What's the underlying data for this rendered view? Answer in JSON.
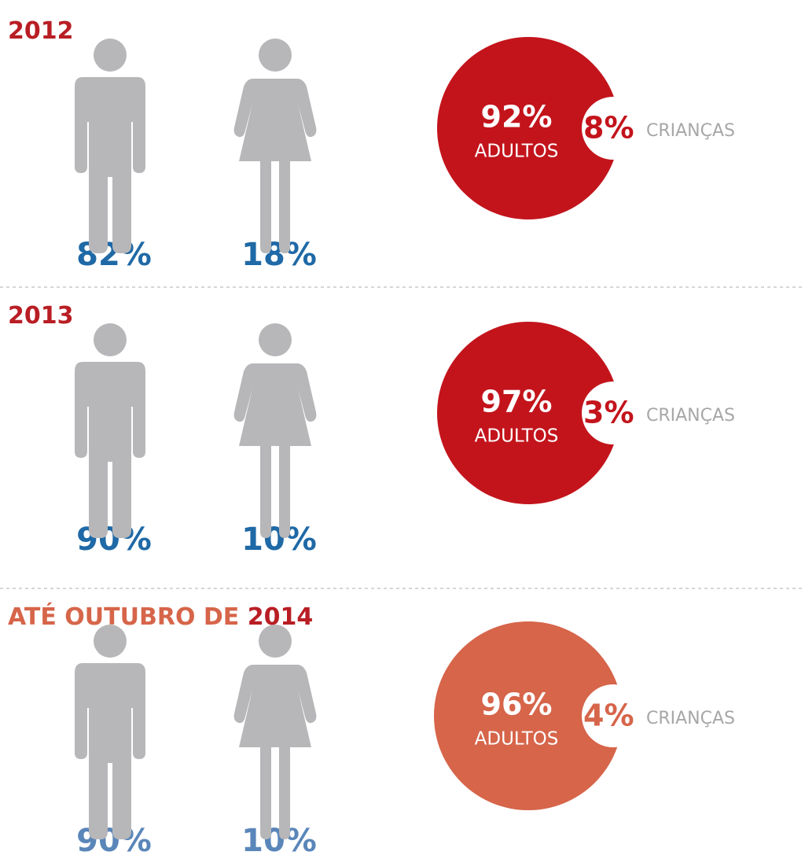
{
  "sections": [
    {
      "title_prefix": null,
      "title_year": "2012",
      "male": "82%",
      "female": "18%",
      "adults_pct": "92%",
      "adults_label": "ADULTOS",
      "children_pct": "8%",
      "children_label": "CRIANÇAS"
    },
    {
      "title_prefix": null,
      "title_year": "2013",
      "male": "90%",
      "female": "10%",
      "adults_pct": "97%",
      "adults_label": "ADULTOS",
      "children_pct": "3%",
      "children_label": "CRIANÇAS"
    },
    {
      "title_prefix": "ATÉ OUTUBRO DE",
      "title_year": "2014",
      "male": "90%",
      "female": "10%",
      "adults_pct": "96%",
      "adults_label": "ADULTOS",
      "children_pct": "4%",
      "children_label": "CRIANÇAS"
    }
  ]
}
